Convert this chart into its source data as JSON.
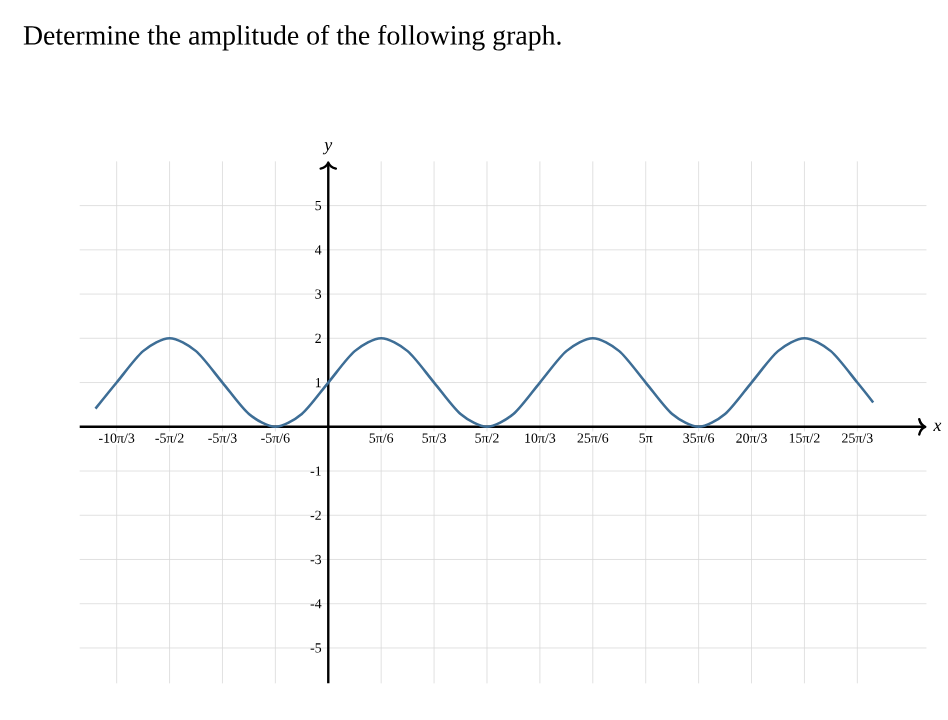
{
  "chart_data": {
    "type": "line",
    "title": "Determine the amplitude of the following graph.",
    "xlabel": "x",
    "ylabel": "y",
    "x": [
      -11.519,
      -10.472,
      -9.163,
      -7.854,
      -6.545,
      -5.236,
      -3.927,
      -2.618,
      -1.309,
      0,
      1.309,
      2.618,
      3.927,
      5.236,
      6.545,
      7.854,
      9.163,
      10.472,
      11.781,
      13.09,
      14.399,
      15.708,
      17.017,
      18.326,
      19.635,
      20.944,
      22.253,
      23.562,
      24.871,
      26.18,
      26.965
    ],
    "series": [
      {
        "color": "#3e6e96",
        "values": [
          0.41,
          1,
          1.71,
          2,
          1.71,
          1,
          0.29,
          0,
          0.29,
          1,
          1.71,
          2,
          1.71,
          1,
          0.29,
          0,
          0.29,
          1,
          1.71,
          2,
          1.71,
          1,
          0.29,
          0,
          0.29,
          1,
          1.71,
          2,
          1.71,
          1,
          0.55
        ]
      }
    ],
    "xlim": [
      -12.3,
      29.6
    ],
    "ylim": [
      -5.8,
      6
    ],
    "xticks": [
      {
        "value": -10.472,
        "label": "-10π/3"
      },
      {
        "value": -7.854,
        "label": "-5π/2"
      },
      {
        "value": -5.236,
        "label": "-5π/3"
      },
      {
        "value": -2.618,
        "label": "-5π/6"
      },
      {
        "value": 2.618,
        "label": "5π/6"
      },
      {
        "value": 5.236,
        "label": "5π/3"
      },
      {
        "value": 7.854,
        "label": "5π/2"
      },
      {
        "value": 10.472,
        "label": "10π/3"
      },
      {
        "value": 13.09,
        "label": "25π/6"
      },
      {
        "value": 15.708,
        "label": "5π"
      },
      {
        "value": 18.326,
        "label": "35π/6"
      },
      {
        "value": 20.944,
        "label": "20π/3"
      },
      {
        "value": 23.562,
        "label": "15π/2"
      },
      {
        "value": 26.18,
        "label": "25π/3"
      }
    ],
    "yticks": [
      -5,
      -4,
      -3,
      -2,
      -1,
      1,
      2,
      3,
      4,
      5
    ],
    "grid": true,
    "line_style": "solid"
  }
}
